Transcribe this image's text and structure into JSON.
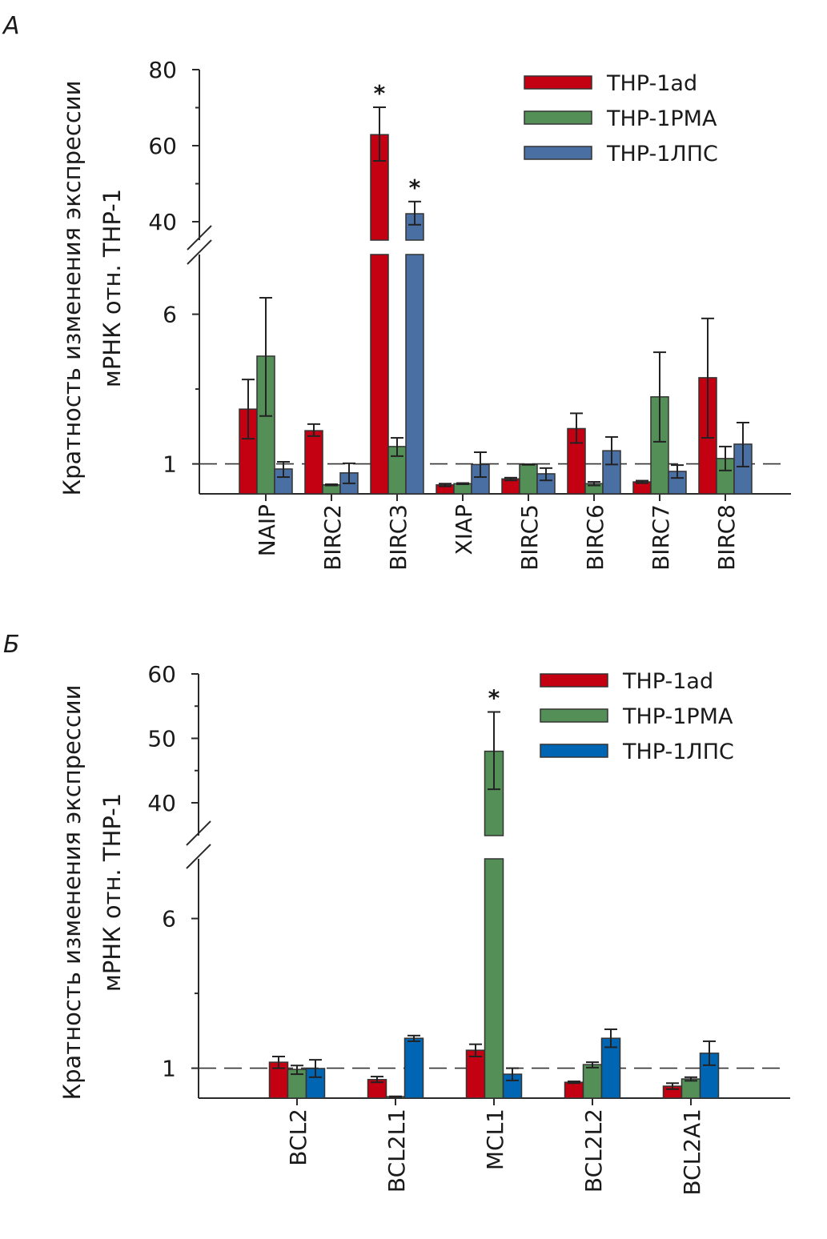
{
  "figure": {
    "ylabel_line1": "Кратность изменения экспрессии",
    "ylabel_line2": "мРНК отн. THP-1"
  },
  "chart_data": [
    {
      "panel": "А",
      "type": "bar",
      "title": "",
      "xlabel": "",
      "ylabel": "Кратность изменения экспрессии мРНК отн. THP-1",
      "axis_break": true,
      "ylim_lower": [
        0,
        8
      ],
      "ylim_upper": [
        35,
        80
      ],
      "yticks_lower": [
        1,
        6
      ],
      "yticks_upper": [
        40,
        60,
        80
      ],
      "reference_line": 1,
      "legend_position": "top-right",
      "categories": [
        "NAIP",
        "BIRC2",
        "BIRC3",
        "XIAP",
        "BIRC5",
        "BIRC6",
        "BIRC7",
        "BIRC8"
      ],
      "series": [
        {
          "name": "THP-1ad",
          "color": "#c40013",
          "values": [
            2.83,
            2.11,
            62.9,
            0.3,
            0.5,
            2.18,
            0.4,
            3.88
          ],
          "err_low": [
            1.84,
            1.93,
            56.0,
            0.25,
            0.45,
            1.7,
            0.36,
            1.87
          ],
          "err_high": [
            3.82,
            2.33,
            70.1,
            0.34,
            0.54,
            2.69,
            0.44,
            5.86
          ],
          "significant": [
            false,
            false,
            true,
            false,
            false,
            false,
            false,
            false
          ]
        },
        {
          "name": "THP-1PMA",
          "color": "#548f58",
          "values": [
            4.6,
            0.3,
            1.58,
            0.34,
            0.98,
            0.34,
            3.24,
            1.18
          ],
          "err_low": [
            2.6,
            0.28,
            1.26,
            0.32,
            0.97,
            0.28,
            1.74,
            0.78
          ],
          "err_high": [
            6.55,
            0.32,
            1.87,
            0.36,
            0.99,
            0.4,
            4.73,
            1.58
          ],
          "significant": [
            false,
            false,
            false,
            false,
            false,
            false,
            false,
            false
          ]
        },
        {
          "name": "THP-1ЛПС",
          "color": "#4a6fa3",
          "values": [
            0.83,
            0.7,
            42.1,
            0.98,
            0.67,
            1.44,
            0.75,
            1.66
          ],
          "err_low": [
            0.56,
            0.35,
            39.2,
            0.56,
            0.45,
            0.98,
            0.53,
            0.91
          ],
          "err_high": [
            1.07,
            1.02,
            45.3,
            1.39,
            0.86,
            1.9,
            0.96,
            2.38
          ],
          "significant": [
            false,
            false,
            true,
            false,
            false,
            false,
            false,
            false
          ]
        }
      ]
    },
    {
      "panel": "Б",
      "type": "bar",
      "title": "",
      "xlabel": "",
      "ylabel": "Кратность изменения экспрессии мРНК отн. THP-1",
      "axis_break": true,
      "ylim_lower": [
        0,
        8
      ],
      "ylim_upper": [
        35,
        60
      ],
      "yticks_lower": [
        1,
        6
      ],
      "yticks_upper": [
        40,
        50,
        60
      ],
      "reference_line": 1,
      "legend_position": "top-right",
      "categories": [
        "BCL2",
        "BCL2L1",
        "MCL1",
        "BCL2L2",
        "BCL2A1"
      ],
      "series": [
        {
          "name": "THP-1ad",
          "color": "#c40013",
          "values": [
            1.2,
            0.62,
            1.6,
            0.53,
            0.4
          ],
          "err_low": [
            1.0,
            0.53,
            1.39,
            0.5,
            0.3
          ],
          "err_high": [
            1.39,
            0.72,
            1.8,
            0.56,
            0.5
          ],
          "significant": [
            false,
            false,
            false,
            false,
            false
          ]
        },
        {
          "name": "THP-1PMA",
          "color": "#548f58",
          "values": [
            0.96,
            0.05,
            48.0,
            1.12,
            0.64
          ],
          "err_low": [
            0.8,
            0.04,
            42.1,
            1.02,
            0.58
          ],
          "err_high": [
            1.09,
            0.06,
            54.1,
            1.2,
            0.7
          ],
          "significant": [
            false,
            false,
            true,
            false,
            false
          ]
        },
        {
          "name": "THP-1ЛПС",
          "color": "#0066b3",
          "values": [
            0.99,
            2.0,
            0.8,
            2.0,
            1.5
          ],
          "err_low": [
            0.7,
            1.9,
            0.59,
            1.7,
            1.1
          ],
          "err_high": [
            1.28,
            2.09,
            1.0,
            2.3,
            1.9
          ],
          "significant": [
            false,
            false,
            false,
            false,
            false
          ]
        }
      ]
    }
  ]
}
